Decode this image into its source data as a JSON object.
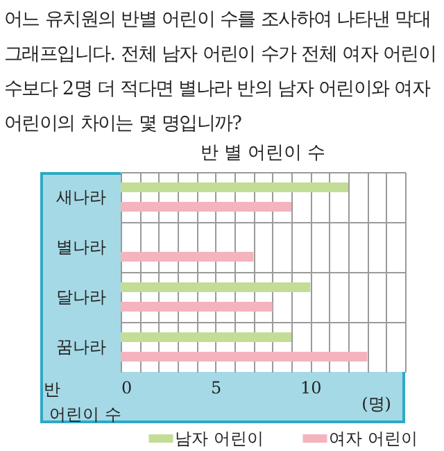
{
  "chart_data": {
    "type": "bar",
    "orientation": "horizontal",
    "title": "반 별 어린이 수",
    "annotations": [
      "어느 유치원의 반별 어린이 수를 조사하여 나타낸 막대그래프입니다. 전체 남자 어린이 수가 전체 여자 어린이 수보다 2명 더 적다면 별나라 반의 남자 어린이와 여자 어린이의 차이는 몇 명입니까?",
      "(명)"
    ],
    "ylabel": "반",
    "xlabel": "어린이 수",
    "categories": [
      "새나라",
      "별나라",
      "달나라",
      "꿈나라"
    ],
    "series": [
      {
        "name": "남자 어린이",
        "color": "#c3dd96",
        "values": [
          12,
          null,
          10,
          9
        ]
      },
      {
        "name": "여자 어린이",
        "color": "#f4b3bd",
        "values": [
          9,
          7,
          8,
          13
        ]
      }
    ],
    "xlim": [
      0,
      15
    ],
    "xticks": [
      0,
      {
        "value": 1,
        "label": null
      },
      {
        "value": 2,
        "label": null
      },
      {
        "value": 3,
        "label": null
      },
      {
        "value": 4,
        "label": null
      },
      5,
      {
        "value": 6,
        "label": null
      },
      {
        "value": 7,
        "label": null
      },
      {
        "value": 8,
        "label": null
      },
      {
        "value": 9,
        "label": null
      },
      10,
      {
        "value": 11,
        "label": null
      },
      {
        "value": 12,
        "label": null
      },
      {
        "value": 13,
        "label": null
      },
      {
        "value": 14,
        "label": null
      },
      {
        "value": 15,
        "label": null
      }
    ],
    "grid": true,
    "legend": "bottom"
  }
}
